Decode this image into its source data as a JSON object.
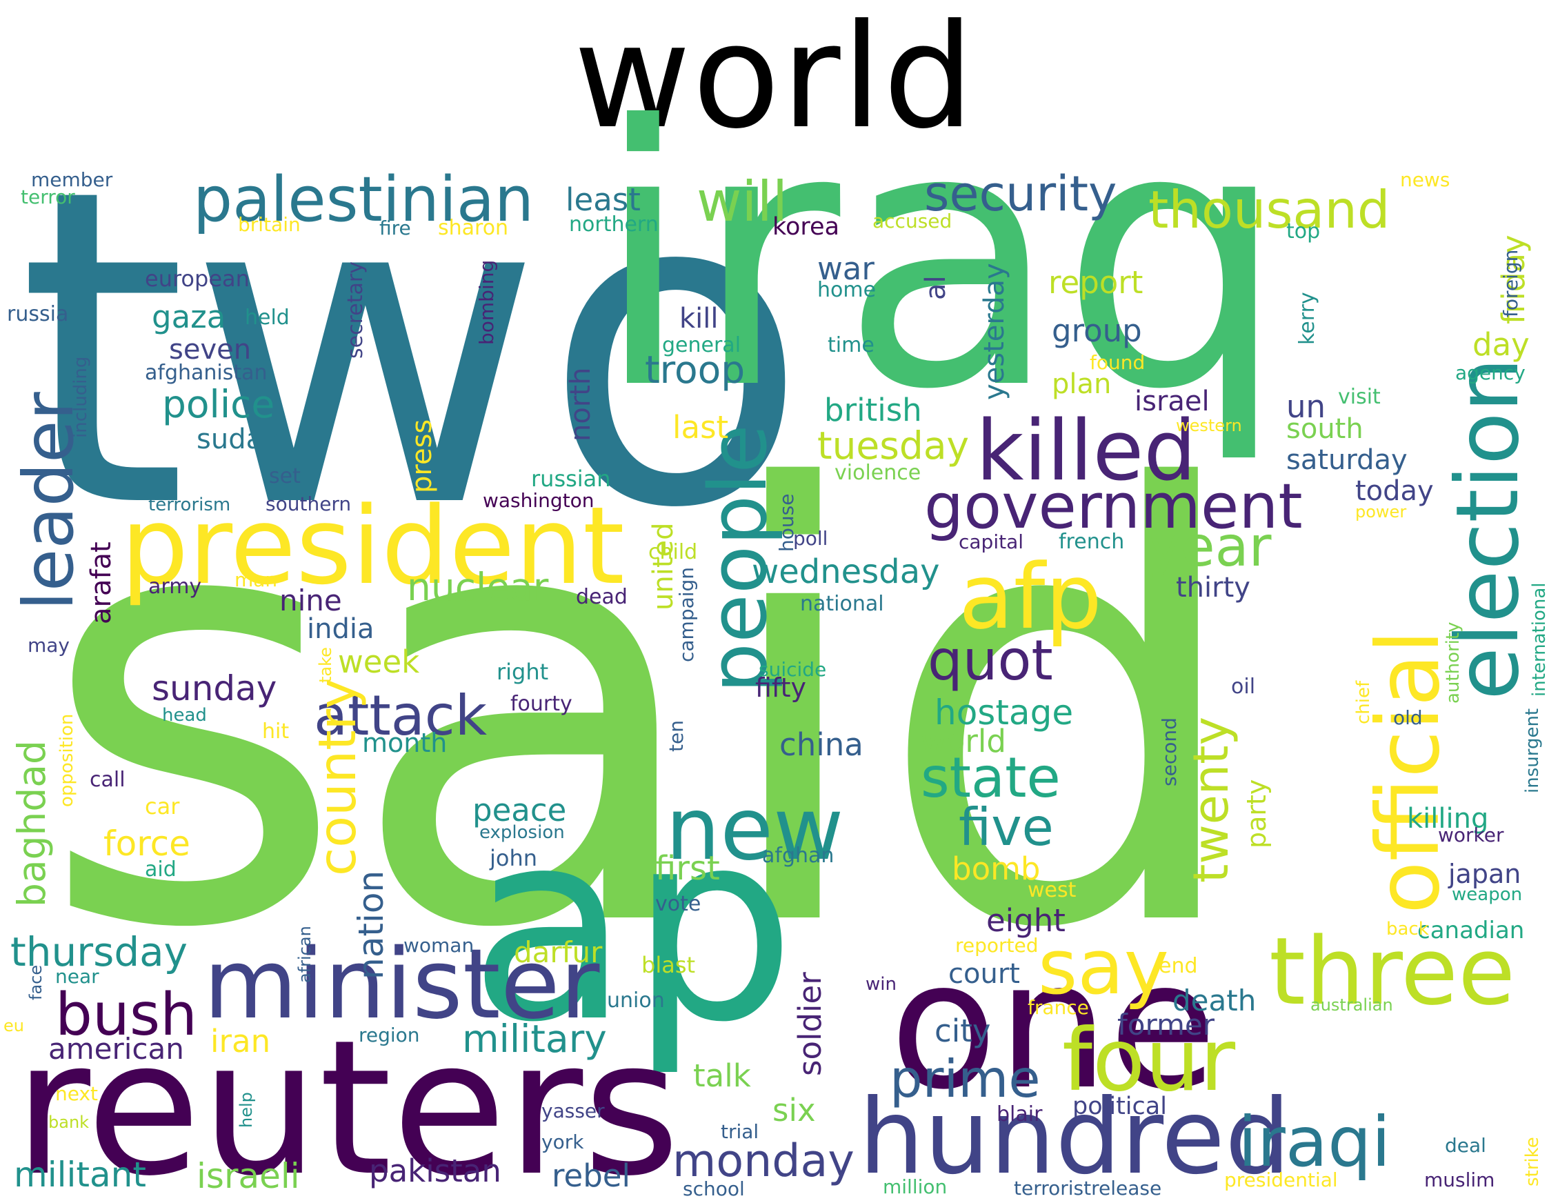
{
  "title": "world",
  "palette": {
    "c0": "#440154",
    "c1": "#482475",
    "c2": "#414487",
    "c3": "#355f8d",
    "c4": "#2a788e",
    "c5": "#21918c",
    "c6": "#22a884",
    "c7": "#44bf70",
    "c8": "#7ad151",
    "c9": "#bddf26",
    "c10": "#fde725"
  },
  "words": [
    {
      "text": "said",
      "color": "c8"
    },
    {
      "text": "two",
      "color": "c4"
    },
    {
      "text": "iraq",
      "color": "c7"
    },
    {
      "text": "ap",
      "color": "c6"
    },
    {
      "text": "reuters",
      "color": "c0"
    },
    {
      "text": "one",
      "color": "c0"
    },
    {
      "text": "president",
      "color": "c10"
    },
    {
      "text": "minister",
      "color": "c2"
    },
    {
      "text": "hundred",
      "color": "c2"
    },
    {
      "text": "three",
      "color": "c9"
    },
    {
      "text": "killed",
      "color": "c1"
    },
    {
      "text": "people",
      "color": "c5"
    },
    {
      "text": "new",
      "color": "c5"
    },
    {
      "text": "afp",
      "color": "c10"
    },
    {
      "text": "election",
      "color": "c5"
    },
    {
      "text": "official",
      "color": "c10"
    },
    {
      "text": "four",
      "color": "c9"
    },
    {
      "text": "iraqi",
      "color": "c4"
    },
    {
      "text": "leader",
      "color": "c3"
    },
    {
      "text": "palestinian",
      "color": "c4"
    },
    {
      "text": "government",
      "color": "c1"
    },
    {
      "text": "security",
      "color": "c3"
    },
    {
      "text": "thousand",
      "color": "c9"
    },
    {
      "text": "say",
      "color": "c10"
    },
    {
      "text": "bush",
      "color": "c0"
    },
    {
      "text": "attack",
      "color": "c2"
    },
    {
      "text": "country",
      "color": "c10"
    },
    {
      "text": "quot",
      "color": "c1"
    },
    {
      "text": "state",
      "color": "c6"
    },
    {
      "text": "will",
      "color": "c8"
    },
    {
      "text": "year",
      "color": "c8"
    },
    {
      "text": "prime",
      "color": "c3"
    },
    {
      "text": "five",
      "color": "c5"
    },
    {
      "text": "twenty",
      "color": "c9"
    },
    {
      "text": "monday",
      "color": "c2"
    },
    {
      "text": "hostage",
      "color": "c6"
    },
    {
      "text": "tuesday",
      "color": "c9"
    },
    {
      "text": "wednesday",
      "color": "c5"
    },
    {
      "text": "thursday",
      "color": "c5"
    },
    {
      "text": "military",
      "color": "c5"
    },
    {
      "text": "nuclear",
      "color": "c8"
    },
    {
      "text": "police",
      "color": "c5"
    },
    {
      "text": "baghdad",
      "color": "c8"
    },
    {
      "text": "troop",
      "color": "c4"
    },
    {
      "text": "militant",
      "color": "c5"
    },
    {
      "text": "israeli",
      "color": "c8"
    },
    {
      "text": "pakistan",
      "color": "c1"
    },
    {
      "text": "rebel",
      "color": "c3"
    },
    {
      "text": "force",
      "color": "c10"
    },
    {
      "text": "sunday",
      "color": "c1"
    },
    {
      "text": "nation",
      "color": "c3"
    },
    {
      "text": "world",
      "color": "c8"
    },
    {
      "text": "week",
      "color": "c9"
    },
    {
      "text": "least",
      "color": "c4"
    },
    {
      "text": "gaza",
      "color": "c5"
    },
    {
      "text": "seven",
      "color": "c2"
    },
    {
      "text": "sudan",
      "color": "c4"
    },
    {
      "text": "kill",
      "color": "c2"
    },
    {
      "text": "group",
      "color": "c3"
    },
    {
      "text": "report",
      "color": "c9"
    },
    {
      "text": "plan",
      "color": "c9"
    },
    {
      "text": "israel",
      "color": "c1"
    },
    {
      "text": "south",
      "color": "c8"
    },
    {
      "text": "saturday",
      "color": "c3"
    },
    {
      "text": "today",
      "color": "c2"
    },
    {
      "text": "thirty",
      "color": "c2"
    },
    {
      "text": "killing",
      "color": "c6"
    },
    {
      "text": "japan",
      "color": "c2"
    },
    {
      "text": "canadian",
      "color": "c6"
    },
    {
      "text": "friday",
      "color": "c9"
    },
    {
      "text": "day",
      "color": "c9"
    },
    {
      "text": "yesterday",
      "color": "c4"
    },
    {
      "text": "british",
      "color": "c6"
    },
    {
      "text": "war",
      "color": "c3"
    },
    {
      "text": "al",
      "color": "c2"
    },
    {
      "text": "un",
      "color": "c2"
    },
    {
      "text": "last",
      "color": "c10"
    },
    {
      "text": "nine",
      "color": "c1"
    },
    {
      "text": "india",
      "color": "c3"
    },
    {
      "text": "peace",
      "color": "c5"
    },
    {
      "text": "first",
      "color": "c8"
    },
    {
      "text": "china",
      "color": "c3"
    },
    {
      "text": "bomb",
      "color": "c10"
    },
    {
      "text": "eight",
      "color": "c1"
    },
    {
      "text": "court",
      "color": "c3"
    },
    {
      "text": "city",
      "color": "c3"
    },
    {
      "text": "former",
      "color": "c2"
    },
    {
      "text": "death",
      "color": "c4"
    },
    {
      "text": "iran",
      "color": "c10"
    },
    {
      "text": "american",
      "color": "c1"
    },
    {
      "text": "darfur",
      "color": "c9"
    },
    {
      "text": "talk",
      "color": "c8"
    },
    {
      "text": "six",
      "color": "c8"
    },
    {
      "text": "soldier",
      "color": "c1"
    },
    {
      "text": "united",
      "color": "c9"
    },
    {
      "text": "north",
      "color": "c2"
    },
    {
      "text": "press",
      "color": "c10"
    },
    {
      "text": "arafat",
      "color": "c0"
    },
    {
      "text": "month",
      "color": "c5"
    },
    {
      "text": "fifty",
      "color": "c1"
    },
    {
      "text": "party",
      "color": "c9"
    },
    {
      "text": "political",
      "color": "c2"
    },
    {
      "text": "member",
      "color": "c3"
    },
    {
      "text": "terror",
      "color": "c7"
    },
    {
      "text": "britain",
      "color": "c10"
    },
    {
      "text": "fire",
      "color": "c4"
    },
    {
      "text": "sharon",
      "color": "c10"
    },
    {
      "text": "northern",
      "color": "c6"
    },
    {
      "text": "accused",
      "color": "c9"
    },
    {
      "text": "news",
      "color": "c10"
    },
    {
      "text": "korea",
      "color": "c0"
    },
    {
      "text": "top",
      "color": "c6"
    },
    {
      "text": "foreign",
      "color": "c3"
    },
    {
      "text": "european",
      "color": "c2"
    },
    {
      "text": "held",
      "color": "c5"
    },
    {
      "text": "russia",
      "color": "c3"
    },
    {
      "text": "secretary",
      "color": "c2"
    },
    {
      "text": "bombing",
      "color": "c1"
    },
    {
      "text": "home",
      "color": "c5"
    },
    {
      "text": "kerry",
      "color": "c5"
    },
    {
      "text": "general",
      "color": "c6"
    },
    {
      "text": "time",
      "color": "c5"
    },
    {
      "text": "found",
      "color": "c10"
    },
    {
      "text": "agency",
      "color": "c6"
    },
    {
      "text": "afghanistan",
      "color": "c3"
    },
    {
      "text": "including",
      "color": "c3"
    },
    {
      "text": "visit",
      "color": "c7"
    },
    {
      "text": "western",
      "color": "c10"
    },
    {
      "text": "set",
      "color": "c3"
    },
    {
      "text": "russian",
      "color": "c6"
    },
    {
      "text": "violence",
      "color": "c8"
    },
    {
      "text": "terrorism",
      "color": "c4"
    },
    {
      "text": "southern",
      "color": "c2"
    },
    {
      "text": "washington",
      "color": "c0"
    },
    {
      "text": "house",
      "color": "c3"
    },
    {
      "text": "power",
      "color": "c10"
    },
    {
      "text": "child",
      "color": "c9"
    },
    {
      "text": "poll",
      "color": "c2"
    },
    {
      "text": "capital",
      "color": "c1"
    },
    {
      "text": "french",
      "color": "c5"
    },
    {
      "text": "army",
      "color": "c1"
    },
    {
      "text": "man",
      "color": "c10"
    },
    {
      "text": "dead",
      "color": "c1"
    },
    {
      "text": "national",
      "color": "c4"
    },
    {
      "text": "campaign",
      "color": "c3"
    },
    {
      "text": "authority",
      "color": "c8"
    },
    {
      "text": "international",
      "color": "c6"
    },
    {
      "text": "may",
      "color": "c2"
    },
    {
      "text": "take",
      "color": "c10"
    },
    {
      "text": "right",
      "color": "c5"
    },
    {
      "text": "suicide",
      "color": "c6"
    },
    {
      "text": "chief",
      "color": "c10"
    },
    {
      "text": "oil",
      "color": "c2"
    },
    {
      "text": "old",
      "color": "c3"
    },
    {
      "text": "insurgent",
      "color": "c4"
    },
    {
      "text": "opposition",
      "color": "c10"
    },
    {
      "text": "head",
      "color": "c5"
    },
    {
      "text": "fourty",
      "color": "c1"
    },
    {
      "text": "hit",
      "color": "c10"
    },
    {
      "text": "ten",
      "color": "c3"
    },
    {
      "text": "second",
      "color": "c3"
    },
    {
      "text": "call",
      "color": "c1"
    },
    {
      "text": "car",
      "color": "c10"
    },
    {
      "text": "explosion",
      "color": "c4"
    },
    {
      "text": "john",
      "color": "c3"
    },
    {
      "text": "aid",
      "color": "c6"
    },
    {
      "text": "afghan",
      "color": "c4"
    },
    {
      "text": "worker",
      "color": "c1"
    },
    {
      "text": "west",
      "color": "c10"
    },
    {
      "text": "weapon",
      "color": "c6"
    },
    {
      "text": "vote",
      "color": "c3"
    },
    {
      "text": "african",
      "color": "c3"
    },
    {
      "text": "woman",
      "color": "c3"
    },
    {
      "text": "reported",
      "color": "c10"
    },
    {
      "text": "back",
      "color": "c10"
    },
    {
      "text": "blast",
      "color": "c9"
    },
    {
      "text": "end",
      "color": "c10"
    },
    {
      "text": "near",
      "color": "c5"
    },
    {
      "text": "face",
      "color": "c3"
    },
    {
      "text": "eu",
      "color": "c10"
    },
    {
      "text": "union",
      "color": "c4"
    },
    {
      "text": "win",
      "color": "c1"
    },
    {
      "text": "france",
      "color": "c10"
    },
    {
      "text": "australian",
      "color": "c8"
    },
    {
      "text": "region",
      "color": "c4"
    },
    {
      "text": "next",
      "color": "c10"
    },
    {
      "text": "bank",
      "color": "c9"
    },
    {
      "text": "help",
      "color": "c5"
    },
    {
      "text": "yasser",
      "color": "c2"
    },
    {
      "text": "trial",
      "color": "c3"
    },
    {
      "text": "blair",
      "color": "c1"
    },
    {
      "text": "deal",
      "color": "c4"
    },
    {
      "text": "york",
      "color": "c3"
    },
    {
      "text": "strike",
      "color": "c10"
    },
    {
      "text": "presidential",
      "color": "c10"
    },
    {
      "text": "muslim",
      "color": "c1"
    },
    {
      "text": "school",
      "color": "c3"
    },
    {
      "text": "million",
      "color": "c7"
    },
    {
      "text": "terroristrelease",
      "color": "c3"
    }
  ]
}
